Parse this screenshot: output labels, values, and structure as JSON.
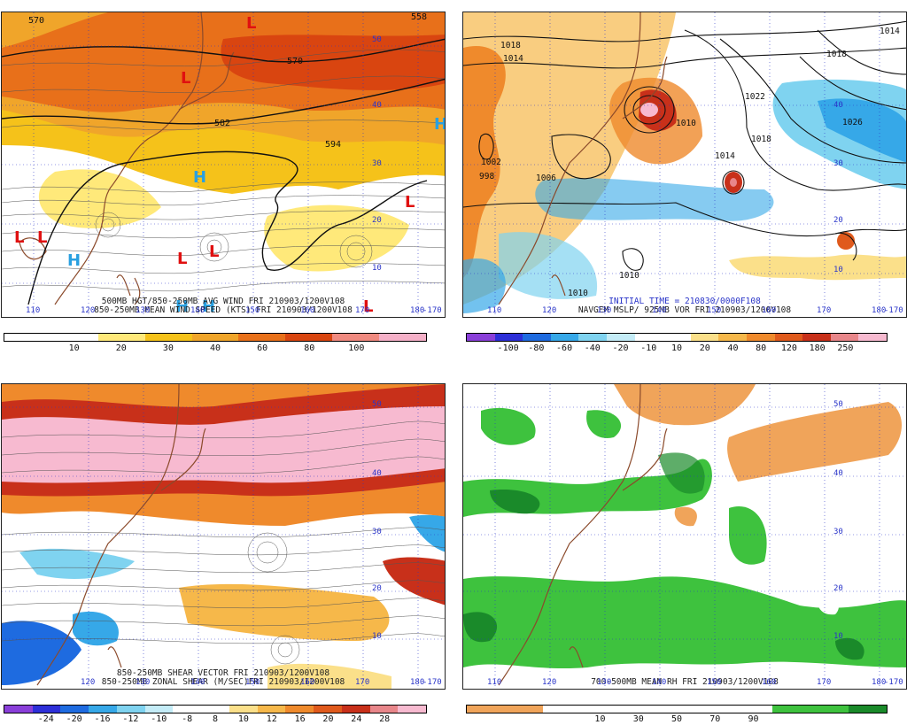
{
  "panels": [
    {
      "id": "p1",
      "captions": [
        "500MB HGT/850-250MB AVG WIND FRI 210903/1200V108",
        "850-250MB MEAN WIND SPEED (KTS) FRI 210903/1200V108"
      ],
      "colorbar": {
        "colors": [
          "#ffffff",
          "#ffffff",
          "#ffe97a",
          "#f5c21a",
          "#f0a52a",
          "#e8701a",
          "#d94510",
          "#f08a80",
          "#f5b0c8"
        ],
        "labels": [
          "10",
          "20",
          "30",
          "40",
          "60",
          "80",
          "100"
        ]
      },
      "lon_labels": [
        "110",
        "120",
        "130",
        "140",
        "150",
        "160",
        "170",
        "180",
        "-170"
      ],
      "lat_labels": [
        "50",
        "40",
        "30",
        "20",
        "10"
      ],
      "contour_labels": [
        "570",
        "582",
        "594",
        "570",
        "558"
      ],
      "highs": [
        "H",
        "H",
        "H",
        "H",
        "H"
      ],
      "lows": [
        "L",
        "L",
        "L",
        "L",
        "L",
        "L",
        "L",
        "L"
      ]
    },
    {
      "id": "p2",
      "captions": [
        "INITIAL TIME = 210830/0000F108",
        "NAVGEM MSLP/ 925MB VOR FRI 210903/1200V108"
      ],
      "colorbar": {
        "colors": [
          "#8a3fd9",
          "#2d2fd8",
          "#1e6be0",
          "#36a8e8",
          "#7fd3f0",
          "#c4ecf7",
          "#ffffff",
          "#ffffff",
          "#fbe08a",
          "#f6b84a",
          "#ef8a2c",
          "#e05a1c",
          "#c8301a",
          "#e8868a",
          "#f7bad0"
        ],
        "labels": [
          "-100",
          "-80",
          "-60",
          "-40",
          "-20",
          "-10",
          "10",
          "20",
          "40",
          "80",
          "120",
          "180",
          "250"
        ]
      },
      "lon_labels": [
        "110",
        "120",
        "130",
        "140",
        "150",
        "160",
        "170",
        "180",
        "-170"
      ],
      "lat_labels": [
        "40",
        "30",
        "20",
        "10"
      ],
      "isobar_labels": [
        "1014",
        "1014",
        "1018",
        "1022",
        "1026",
        "1018",
        "1014",
        "1010",
        "1010",
        "1002",
        "998",
        "1006",
        "1010",
        "1018"
      ]
    },
    {
      "id": "p3",
      "captions": [
        "850-250MB SHEAR VECTOR FRI 210903/1200V108",
        "850-250MB ZONAL SHEAR (M/SEC)FRI 210903/1200V108"
      ],
      "colorbar": {
        "colors": [
          "#8a3fd9",
          "#2d2fd8",
          "#1e6be0",
          "#36a8e8",
          "#7fd3f0",
          "#c4ecf7",
          "#ffffff",
          "#ffffff",
          "#fbe08a",
          "#f6b84a",
          "#ef8a2c",
          "#e05a1c",
          "#c8301a",
          "#e8868a",
          "#f7bad0"
        ],
        "labels": [
          "-24",
          "-20",
          "-16",
          "-12",
          "-10",
          "-8",
          "8",
          "10",
          "12",
          "16",
          "20",
          "24",
          "28"
        ]
      },
      "lon_labels": [
        "120",
        "130",
        "140",
        "150",
        "160",
        "170",
        "180",
        "-170"
      ],
      "lat_labels": [
        "50",
        "40",
        "30",
        "20",
        "10"
      ]
    },
    {
      "id": "p4",
      "captions": [
        "700-500MB MEAN RH FRI 210903/1200V108"
      ],
      "colorbar": {
        "colors": [
          "#f0a45a",
          "#f0a45a",
          "#ffffff",
          "#ffffff",
          "#ffffff",
          "#ffffff",
          "#ffffff",
          "#ffffff",
          "#3ec23e",
          "#3ec23e",
          "#1a8a2a"
        ],
        "labels": [
          "10",
          "30",
          "50",
          "70",
          "90"
        ]
      },
      "lon_labels": [
        "110",
        "120",
        "130",
        "140",
        "150",
        "160",
        "170",
        "180",
        "-170"
      ],
      "lat_labels": [
        "50",
        "40",
        "30",
        "20",
        "10"
      ]
    }
  ]
}
